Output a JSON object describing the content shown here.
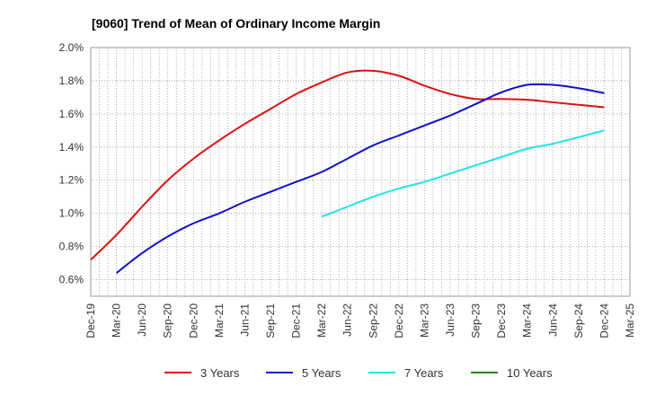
{
  "chart_data": {
    "type": "line",
    "title": "[9060]  Trend of Mean of Ordinary Income Margin",
    "xlabel": "",
    "ylabel": "",
    "categories": [
      "Dec-19",
      "Mar-20",
      "Jun-20",
      "Sep-20",
      "Dec-20",
      "Mar-21",
      "Jun-21",
      "Sep-21",
      "Dec-21",
      "Mar-22",
      "Jun-22",
      "Sep-22",
      "Dec-22",
      "Mar-23",
      "Jun-23",
      "Sep-23",
      "Dec-23",
      "Mar-24",
      "Jun-24",
      "Sep-24",
      "Dec-24",
      "Mar-25"
    ],
    "ylim": [
      0.5,
      2.0
    ],
    "yticks": [
      "0.6%",
      "0.8%",
      "1.0%",
      "1.2%",
      "1.4%",
      "1.6%",
      "1.8%",
      "2.0%"
    ],
    "yticks_values": [
      0.6,
      0.8,
      1.0,
      1.2,
      1.4,
      1.6,
      1.8,
      2.0
    ],
    "grid": true,
    "legend_position": "bottom",
    "series": [
      {
        "name": "3 Years",
        "color": "#dd1111",
        "values": [
          0.72,
          0.87,
          1.04,
          1.2,
          1.33,
          1.44,
          1.54,
          1.63,
          1.72,
          1.79,
          1.85,
          1.86,
          1.83,
          1.77,
          1.72,
          1.69,
          1.69,
          1.685,
          1.67,
          1.655,
          1.64,
          null
        ]
      },
      {
        "name": "5 Years",
        "color": "#1111cc",
        "values": [
          null,
          0.64,
          0.76,
          0.86,
          0.94,
          1.0,
          1.07,
          1.13,
          1.19,
          1.25,
          1.33,
          1.41,
          1.47,
          1.53,
          1.59,
          1.66,
          1.73,
          1.775,
          1.775,
          1.755,
          1.725,
          null
        ]
      },
      {
        "name": "7 Years",
        "color": "#22e5e5",
        "values": [
          null,
          null,
          null,
          null,
          null,
          null,
          null,
          null,
          null,
          0.98,
          1.04,
          1.1,
          1.15,
          1.19,
          1.24,
          1.29,
          1.34,
          1.39,
          1.42,
          1.46,
          1.5,
          null
        ]
      },
      {
        "name": "10 Years",
        "color": "#1a8a1a",
        "values": [
          null,
          null,
          null,
          null,
          null,
          null,
          null,
          null,
          null,
          null,
          null,
          null,
          null,
          null,
          null,
          null,
          null,
          null,
          null,
          null,
          null,
          null
        ]
      }
    ]
  }
}
